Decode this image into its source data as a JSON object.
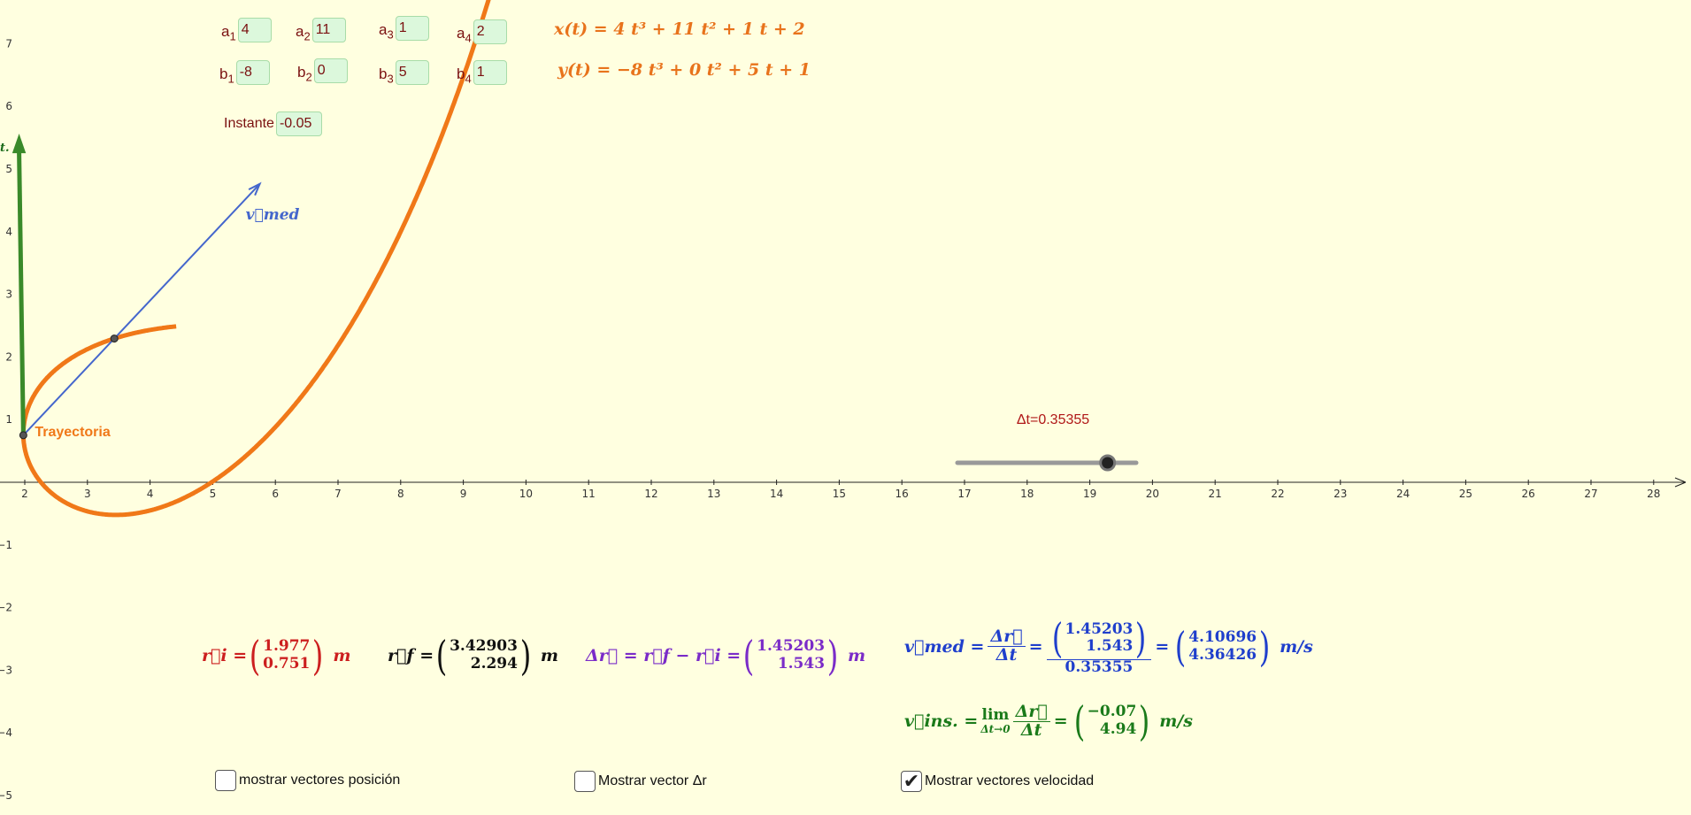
{
  "params": {
    "a": [
      {
        "sub": "1",
        "value": "4"
      },
      {
        "sub": "2",
        "value": "11"
      },
      {
        "sub": "3",
        "value": "1"
      },
      {
        "sub": "4",
        "value": "2"
      }
    ],
    "b": [
      {
        "sub": "1",
        "value": "-8"
      },
      {
        "sub": "2",
        "value": "0"
      },
      {
        "sub": "3",
        "value": "5"
      },
      {
        "sub": "4",
        "value": "1"
      }
    ]
  },
  "equations": {
    "x_eq": "x(t) = 4 t³ + 11 t² + 1 t + 2",
    "y_eq": "y(t) = −8 t³ + 0 t² + 5 t + 1"
  },
  "instante": {
    "label": "Instante",
    "value": "-0.05"
  },
  "slider": {
    "label": "Δt=0.35355",
    "fraction": 0.84
  },
  "graph": {
    "x_ticks": [
      "2",
      "3",
      "4",
      "5",
      "6",
      "7",
      "8",
      "9",
      "10",
      "11",
      "12",
      "13",
      "14",
      "15",
      "16",
      "17",
      "18",
      "19",
      "20",
      "21",
      "22",
      "23",
      "24",
      "25",
      "26",
      "27",
      "28"
    ],
    "y_ticks": [
      "7",
      "6",
      "5",
      "4",
      "3",
      "2",
      "1",
      "−1",
      "−2",
      "−3",
      "−4",
      "−5"
    ],
    "trajectory_label": "Trayectoria",
    "vmed_label": "v⃗med",
    "y_axis_cut_label": "t.",
    "colors": {
      "trajectory": "#f07818",
      "vmed": "#4466cc",
      "vins": "#3a8a2a",
      "axis": "#222222"
    }
  },
  "vectors": {
    "ri": {
      "name": "r⃗i =",
      "c1": "1.977",
      "c2": "0.751",
      "unit": "m",
      "color": "#cc1f1f"
    },
    "rf": {
      "name": "r⃗f =",
      "c1": "3.42903",
      "c2": "2.294",
      "unit": "m",
      "color": "#111111"
    },
    "dr": {
      "name": "Δr⃗ = r⃗f − r⃗i =",
      "c1": "1.45203",
      "c2": "1.543",
      "unit": "m",
      "color": "#7a2bc8"
    },
    "vmed": {
      "lhs": "v⃗med =",
      "frac_num": "Δr⃗",
      "frac_den": "Δt",
      "eq": "=",
      "inner_c1": "1.45203",
      "inner_c2": "1.543",
      "inner_den": "0.35355",
      "eq2": "=",
      "c1": "4.10696",
      "c2": "4.36426",
      "unit": "m/s",
      "color": "#1f3fcc"
    },
    "vins": {
      "lhs": "v⃗ins. =",
      "lim": "lim",
      "lim_sub": "Δt→0",
      "frac_num": "Δr⃗",
      "frac_den": "Δt",
      "eq": "=",
      "c1": "−0.07",
      "c2": "4.94",
      "unit": "m/s",
      "color": "#1a7a1a"
    }
  },
  "checkboxes": [
    {
      "label": "mostrar vectores posición",
      "checked": false
    },
    {
      "label": "Mostrar vector Δr",
      "checked": false
    },
    {
      "label": "Mostrar vectores velocidad",
      "checked": true
    }
  ]
}
